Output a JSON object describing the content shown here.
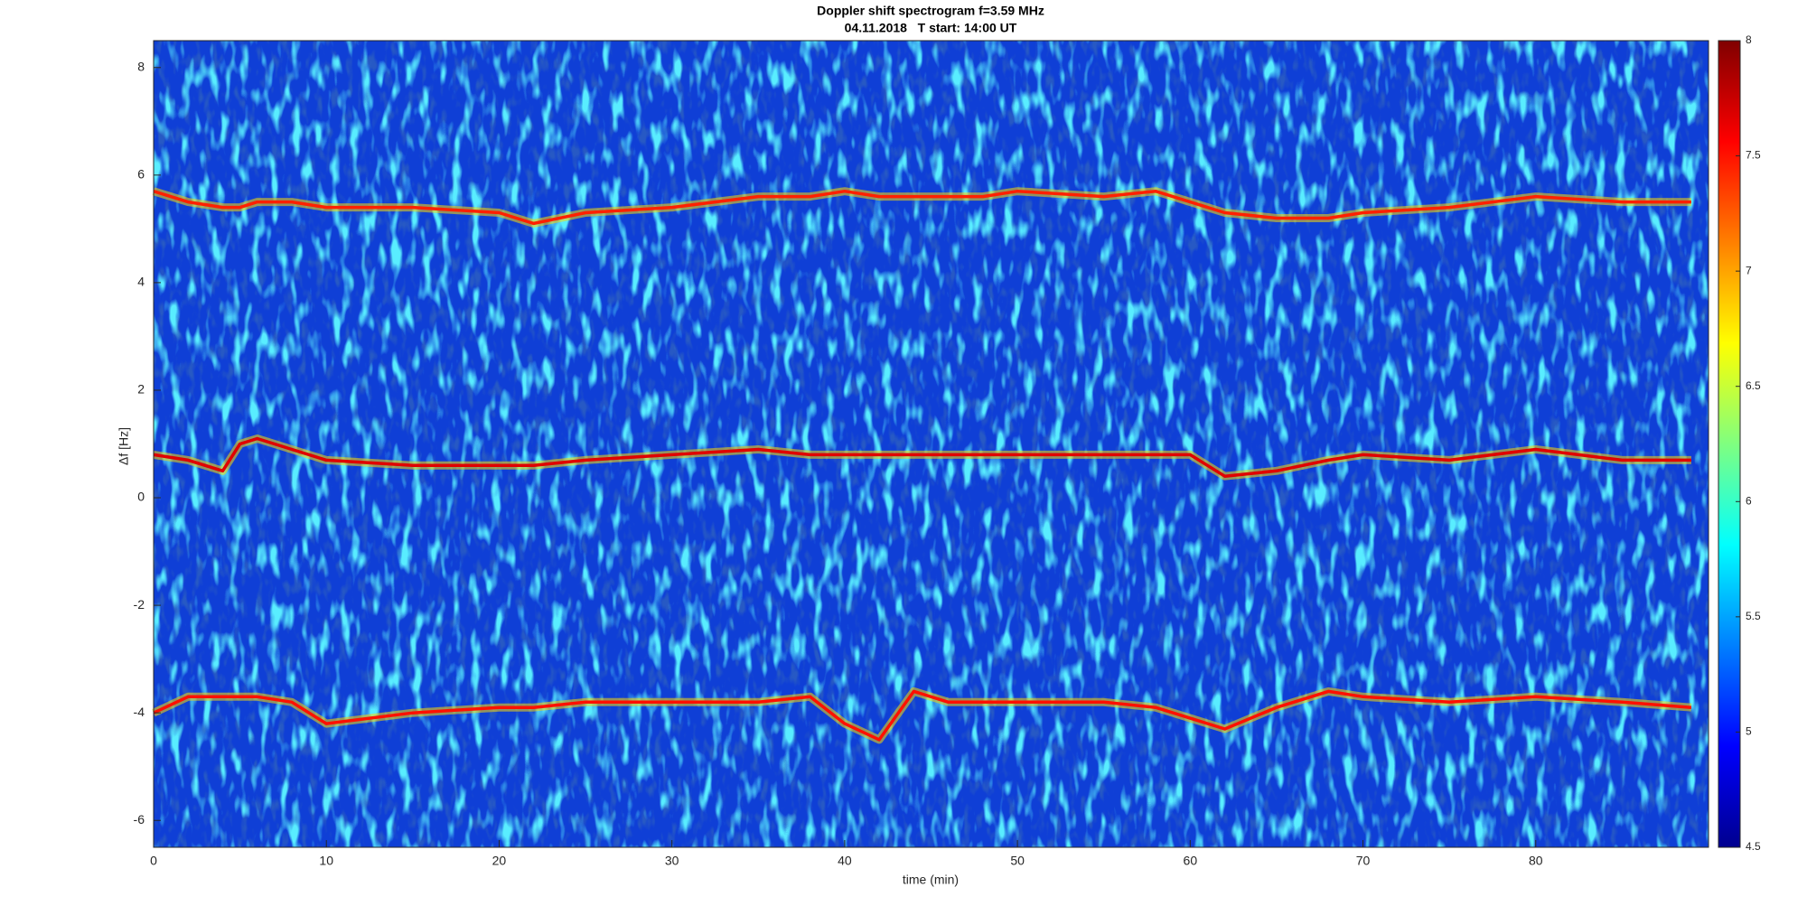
{
  "chart_data": {
    "type": "spectrogram",
    "title": "Doppler shift spectrogram f=3.59 MHz",
    "subtitle": "04.11.2018   T start: 14:00 UT",
    "x_label": "time (min)",
    "y_label": "Δf [Hz]",
    "xlim": [
      0,
      90
    ],
    "xticks": [
      0,
      10,
      20,
      30,
      40,
      50,
      60,
      70,
      80
    ],
    "ylim": [
      -6.5,
      8.5
    ],
    "yticks": [
      -6,
      -4,
      -2,
      0,
      2,
      4,
      6,
      8
    ],
    "colormap": "jet",
    "clim": [
      4.5,
      8
    ],
    "cticks": [
      4.5,
      5,
      5.5,
      6,
      6.5,
      7,
      7.5,
      8
    ],
    "x": [
      0,
      2,
      4,
      5,
      6,
      8,
      10,
      15,
      20,
      22,
      25,
      30,
      35,
      38,
      40,
      42,
      44,
      46,
      48,
      50,
      55,
      58,
      60,
      62,
      65,
      68,
      70,
      75,
      80,
      85,
      89
    ],
    "series": [
      {
        "color": "#ff2000",
        "values": [
          5.7,
          5.5,
          5.4,
          5.4,
          5.5,
          5.5,
          5.4,
          5.4,
          5.3,
          5.1,
          5.3,
          5.4,
          5.6,
          5.6,
          5.7,
          5.6,
          5.6,
          5.6,
          5.6,
          5.7,
          5.6,
          5.7,
          5.5,
          5.3,
          5.2,
          5.2,
          5.3,
          5.4,
          5.6,
          5.5,
          5.5
        ]
      },
      {
        "color": "#e00000",
        "values": [
          0.8,
          0.7,
          0.5,
          1.0,
          1.1,
          0.9,
          0.7,
          0.6,
          0.6,
          0.6,
          0.7,
          0.8,
          0.9,
          0.8,
          0.8,
          0.8,
          0.8,
          0.8,
          0.8,
          0.8,
          0.8,
          0.8,
          0.8,
          0.4,
          0.5,
          0.7,
          0.8,
          0.7,
          0.9,
          0.7,
          0.7
        ]
      },
      {
        "color": "#ff1000",
        "values": [
          -4.0,
          -3.7,
          -3.7,
          -3.7,
          -3.7,
          -3.8,
          -4.2,
          -4.0,
          -3.9,
          -3.9,
          -3.8,
          -3.8,
          -3.8,
          -3.7,
          -4.2,
          -4.5,
          -3.6,
          -3.8,
          -3.8,
          -3.8,
          -3.8,
          -3.9,
          -4.1,
          -4.3,
          -3.9,
          -3.6,
          -3.7,
          -3.8,
          -3.7,
          -3.8,
          -3.9
        ]
      }
    ]
  }
}
